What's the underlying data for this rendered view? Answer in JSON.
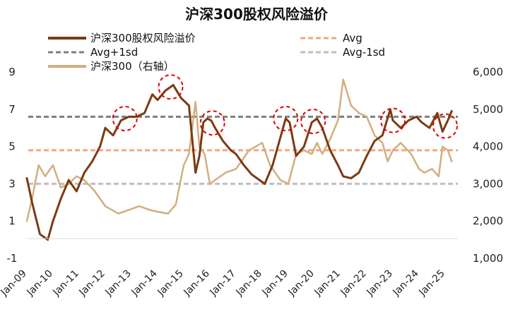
{
  "chart_data": {
    "type": "line",
    "title": "沪深300股权风险溢价",
    "x_ticks": [
      "Jan-09",
      "Jan-10",
      "Jan-11",
      "Jan-12",
      "Jan-13",
      "Jan-14",
      "Jan-15",
      "Jan-16",
      "Jan-17",
      "Jan-18",
      "Jan-19",
      "Jan-20",
      "Jan-21",
      "Jan-22",
      "Jan-23",
      "Jan-24",
      "Jan-25"
    ],
    "y_left": {
      "ticks": [
        "9",
        "7",
        "5",
        "3",
        "1",
        "-1"
      ],
      "range": [
        -1,
        9
      ]
    },
    "y_right": {
      "ticks": [
        "6,000",
        "5,000",
        "4,000",
        "3,000",
        "2,000",
        "1,000"
      ],
      "range": [
        1000,
        6000
      ]
    },
    "legend": [
      {
        "label": "沪深300股权风险溢价",
        "color": "#7B3A12",
        "style": "solid"
      },
      {
        "label": "Avg",
        "color": "#F4A582",
        "style": "dashed"
      },
      {
        "label": "Avg+1sd",
        "color": "#7F7F7F",
        "style": "dashed"
      },
      {
        "label": "Avg-1sd",
        "color": "#BFBFBF",
        "style": "dashed"
      },
      {
        "label": "沪深300（右轴）",
        "color": "#D2AE7F",
        "style": "solid"
      }
    ],
    "reference_lines": {
      "avg": 4.8,
      "avg_plus_1sd": 6.6,
      "avg_minus_1sd": 3.0
    },
    "series": [
      {
        "name": "沪深300股权风险溢价",
        "axis": "left",
        "color": "#7B3A12",
        "x": [
          2009.0,
          2009.2,
          2009.5,
          2009.8,
          2010.0,
          2010.3,
          2010.6,
          2010.9,
          2011.2,
          2011.5,
          2011.8,
          2012.0,
          2012.3,
          2012.6,
          2012.9,
          2013.2,
          2013.5,
          2013.8,
          2014.0,
          2014.3,
          2014.6,
          2014.9,
          2015.2,
          2015.45,
          2015.6,
          2015.75,
          2015.9,
          2016.05,
          2016.2,
          2016.5,
          2016.8,
          2017.0,
          2017.3,
          2017.6,
          2017.9,
          2018.1,
          2018.4,
          2018.6,
          2018.9,
          2019.05,
          2019.3,
          2019.6,
          2019.9,
          2020.1,
          2020.3,
          2020.6,
          2020.9,
          2021.1,
          2021.4,
          2021.7,
          2022.0,
          2022.3,
          2022.6,
          2022.9,
          2023.0,
          2023.3,
          2023.6,
          2023.9,
          2024.1,
          2024.4,
          2024.7,
          2024.9,
          2025.1,
          2025.25
        ],
        "values": [
          3.3,
          2.0,
          0.3,
          0.0,
          1.0,
          2.2,
          3.2,
          2.6,
          3.6,
          4.2,
          5.0,
          6.0,
          5.6,
          6.4,
          6.6,
          6.6,
          6.8,
          7.8,
          7.5,
          8.0,
          8.3,
          7.6,
          7.2,
          3.6,
          4.5,
          6.3,
          6.5,
          6.4,
          6.0,
          5.3,
          4.8,
          4.6,
          4.0,
          3.5,
          3.2,
          3.0,
          4.0,
          5.0,
          6.5,
          6.3,
          4.5,
          5.0,
          6.3,
          6.5,
          6.0,
          4.8,
          4.0,
          3.4,
          3.3,
          3.6,
          4.5,
          5.3,
          5.6,
          7.0,
          6.4,
          6.0,
          6.4,
          6.6,
          6.3,
          6.0,
          6.8,
          5.8,
          6.4,
          6.9
        ]
      },
      {
        "name": "沪深300（右轴）",
        "axis": "right",
        "color": "#D2AE7F",
        "x": [
          2009.0,
          2009.2,
          2009.45,
          2009.7,
          2010.0,
          2010.3,
          2010.6,
          2010.9,
          2011.2,
          2011.6,
          2012.0,
          2012.5,
          2012.9,
          2013.3,
          2013.7,
          2014.0,
          2014.4,
          2014.7,
          2015.0,
          2015.2,
          2015.45,
          2015.6,
          2015.8,
          2016.0,
          2016.2,
          2016.6,
          2017.0,
          2017.5,
          2018.0,
          2018.3,
          2018.7,
          2019.0,
          2019.3,
          2019.6,
          2019.9,
          2020.1,
          2020.3,
          2020.6,
          2020.9,
          2021.1,
          2021.4,
          2021.7,
          2022.0,
          2022.3,
          2022.6,
          2022.8,
          2023.0,
          2023.3,
          2023.7,
          2024.0,
          2024.2,
          2024.5,
          2024.75,
          2024.9,
          2025.1,
          2025.25
        ],
        "values": [
          2000,
          2600,
          3500,
          3200,
          3500,
          2900,
          3000,
          3200,
          3100,
          2800,
          2400,
          2200,
          2300,
          2400,
          2300,
          2250,
          2200,
          2450,
          3500,
          3800,
          5200,
          4000,
          3800,
          3000,
          3100,
          3300,
          3400,
          3900,
          4100,
          3500,
          3100,
          3000,
          3800,
          3900,
          3800,
          4100,
          3800,
          4200,
          4700,
          5800,
          5100,
          4900,
          4800,
          4300,
          4100,
          3600,
          3900,
          4100,
          3800,
          3400,
          3300,
          3400,
          3200,
          4000,
          3900,
          3600
        ]
      }
    ],
    "highlights": [
      2012.75,
      2014.5,
      2016.1,
      2018.9,
      2019.95,
      2023.0,
      2025.0
    ]
  }
}
